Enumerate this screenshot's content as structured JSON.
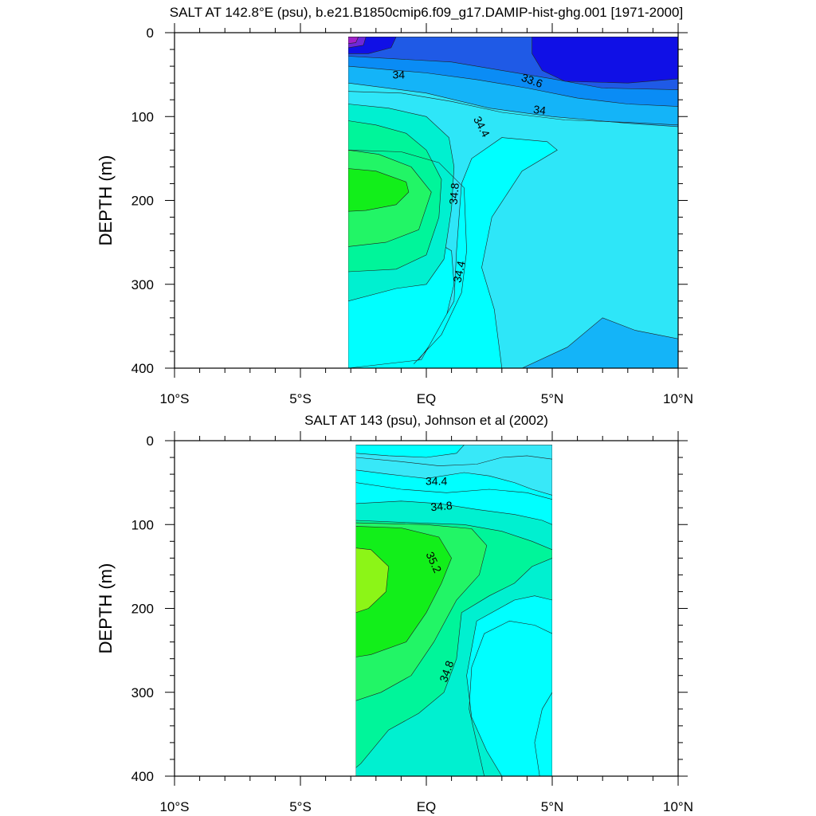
{
  "chart_data": [
    {
      "type": "contour",
      "title": "SALT AT 142.8°E (psu), b.e21.B1850cmip6.f09_g17.DAMIP-hist-ghg.001 [1971-2000]",
      "ylabel": "DEPTH (m)",
      "xlim": [
        -10,
        10
      ],
      "ylim": [
        400,
        0
      ],
      "y_inverted": true,
      "xticks": [
        {
          "value": -10,
          "label": "10°S"
        },
        {
          "value": -5,
          "label": "5°S"
        },
        {
          "value": 0,
          "label": "EQ"
        },
        {
          "value": 5,
          "label": "5°N"
        },
        {
          "value": 10,
          "label": "10°N"
        }
      ],
      "yticks": [
        {
          "value": 0,
          "label": "0"
        },
        {
          "value": 100,
          "label": "100"
        },
        {
          "value": 200,
          "label": "200"
        },
        {
          "value": 300,
          "label": "300"
        },
        {
          "value": 400,
          "label": "400"
        }
      ],
      "data_extent": {
        "x": [
          -3.1,
          10
        ],
        "y": [
          5,
          400
        ]
      },
      "colors": {
        "magenta": "#a020c8",
        "violet": "#6d28d9",
        "deep_blue": "#1010e6",
        "royal_blue": "#1f5ae6",
        "blue": "#0a8cf5",
        "sky": "#14b4f8",
        "light_cyan": "#2ee6f8",
        "cyan": "#00ffff",
        "aqua": "#00f0d0",
        "sea": "#00f59a",
        "green_light": "#22f566",
        "green": "#12ef1a"
      },
      "contour_labels": [
        {
          "text": "34",
          "x": -1.1,
          "y": 50,
          "angle": 0
        },
        {
          "text": "33.6",
          "x": 4.2,
          "y": 57,
          "angle": 20
        },
        {
          "text": "34",
          "x": 4.5,
          "y": 92,
          "angle": 8
        },
        {
          "text": "34.4",
          "x": 2.2,
          "y": 112,
          "angle": 62
        },
        {
          "text": "34.8",
          "x": 1.1,
          "y": 192,
          "angle": -85
        },
        {
          "text": "34.4",
          "x": 1.3,
          "y": 285,
          "angle": -78
        }
      ]
    },
    {
      "type": "contour",
      "title": "SALT AT 143 (psu), Johnson et al (2002)",
      "ylabel": "DEPTH (m)",
      "xlim": [
        -10,
        10
      ],
      "ylim": [
        400,
        0
      ],
      "y_inverted": true,
      "xticks": [
        {
          "value": -10,
          "label": "10°S"
        },
        {
          "value": -5,
          "label": "5°S"
        },
        {
          "value": 0,
          "label": "EQ"
        },
        {
          "value": 5,
          "label": "5°N"
        },
        {
          "value": 10,
          "label": "10°N"
        }
      ],
      "yticks": [
        {
          "value": 0,
          "label": "0"
        },
        {
          "value": 100,
          "label": "100"
        },
        {
          "value": 200,
          "label": "200"
        },
        {
          "value": 300,
          "label": "300"
        },
        {
          "value": 400,
          "label": "400"
        }
      ],
      "data_extent": {
        "x": [
          -2.8,
          5
        ],
        "y": [
          5,
          400
        ]
      },
      "colors": {
        "cyan_pale": "#38e8f8",
        "cyan": "#00ffff",
        "aqua": "#00f0d0",
        "sea": "#00f59a",
        "green_light": "#22f566",
        "green": "#12ef1a",
        "lime": "#8cf517"
      },
      "contour_labels": [
        {
          "text": "34.4",
          "x": 0.4,
          "y": 48,
          "angle": 0
        },
        {
          "text": "34.8",
          "x": 0.6,
          "y": 78,
          "angle": -5
        },
        {
          "text": "35.2",
          "x": 0.3,
          "y": 145,
          "angle": 65
        },
        {
          "text": "34.8",
          "x": 0.8,
          "y": 275,
          "angle": -70
        }
      ]
    }
  ]
}
